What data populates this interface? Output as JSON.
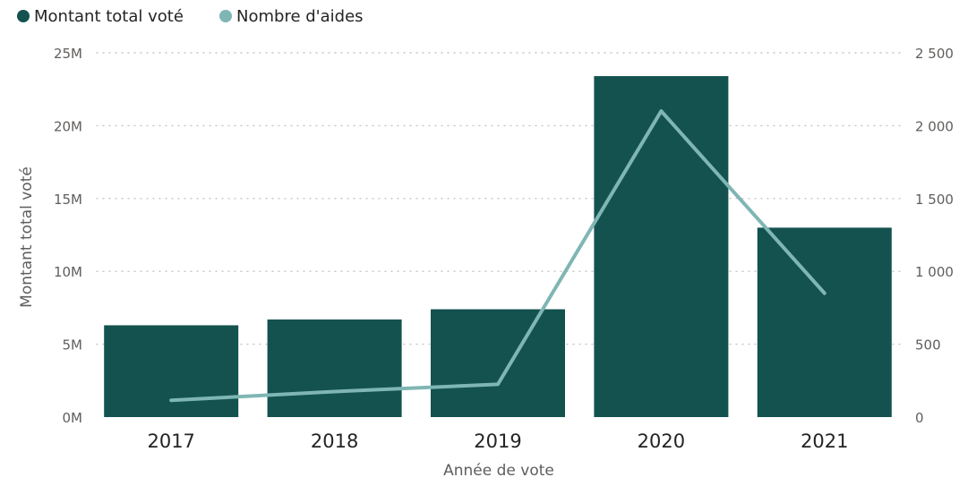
{
  "chart_data": {
    "type": "bar+line",
    "categories": [
      "2017",
      "2018",
      "2019",
      "2020",
      "2021"
    ],
    "series": [
      {
        "name": "Montant total voté",
        "type": "bar",
        "axis": "left",
        "color": "#13524f",
        "values": [
          6300000,
          6700000,
          7400000,
          23400000,
          13000000
        ]
      },
      {
        "name": "Nombre d'aides",
        "type": "line",
        "axis": "right",
        "color": "#7fb6b4",
        "values": [
          115,
          175,
          225,
          2100,
          850
        ]
      }
    ],
    "xlabel": "Année de vote",
    "ylabel": "Montant total voté",
    "ylim": [
      0,
      25000000
    ],
    "y2lim": [
      0,
      2500
    ],
    "yticks": [
      "0M",
      "5M",
      "10M",
      "15M",
      "20M",
      "25M"
    ],
    "y2ticks": [
      "0",
      "500",
      "1 000",
      "1 500",
      "2 000",
      "2 500"
    ],
    "grid": true,
    "legend_position": "top-left"
  }
}
